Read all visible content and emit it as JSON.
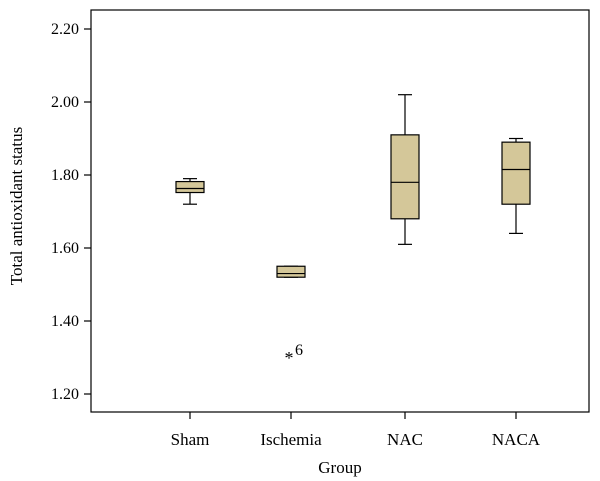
{
  "chart_data": {
    "type": "boxplot",
    "xlabel": "Group",
    "ylabel": "Total antioxidant status",
    "ylim": [
      1.15,
      2.23
    ],
    "yticks": [
      1.2,
      1.4,
      1.6,
      1.8,
      2.0,
      2.2
    ],
    "ytick_labels": [
      "1.20",
      "1.40",
      "1.60",
      "1.80",
      "2.00",
      "2.20"
    ],
    "box_color": "#d4c799",
    "categories": [
      "Sham",
      "Ischemia",
      "NAC",
      "NACA"
    ],
    "boxes": [
      {
        "name": "Sham",
        "whisker_low": 1.72,
        "q1": 1.752,
        "median": 1.763,
        "q3": 1.782,
        "whisker_high": 1.79
      },
      {
        "name": "Ischemia",
        "whisker_low": 1.52,
        "q1": 1.52,
        "median": 1.53,
        "q3": 1.55,
        "whisker_high": 1.55
      },
      {
        "name": "NAC",
        "whisker_low": 1.61,
        "q1": 1.68,
        "median": 1.78,
        "q3": 1.91,
        "whisker_high": 2.02
      },
      {
        "name": "NACA",
        "whisker_low": 1.64,
        "q1": 1.72,
        "median": 1.815,
        "q3": 1.89,
        "whisker_high": 1.9
      }
    ],
    "outliers": [
      {
        "category": "Ischemia",
        "value": 1.31,
        "marker": "*",
        "label": "6"
      }
    ]
  }
}
